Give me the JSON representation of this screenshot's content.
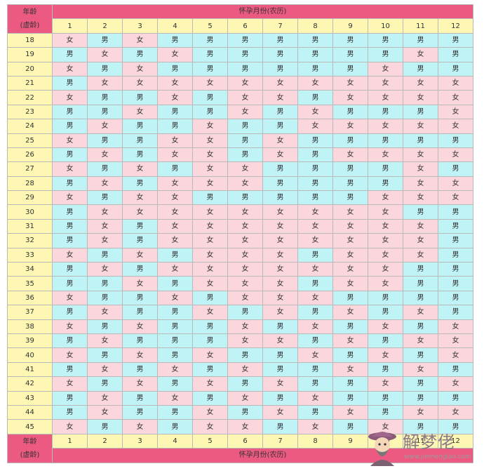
{
  "header": {
    "age_label_line1": "年龄",
    "age_label_line2": "(虚龄)",
    "title": "怀孕月份(农历)"
  },
  "months": [
    "1",
    "2",
    "3",
    "4",
    "5",
    "6",
    "7",
    "8",
    "9",
    "10",
    "11",
    "12"
  ],
  "rows": [
    {
      "age": "18",
      "values": [
        "女",
        "男",
        "女",
        "男",
        "男",
        "男",
        "男",
        "男",
        "男",
        "男",
        "男",
        "男"
      ]
    },
    {
      "age": "19",
      "values": [
        "男",
        "女",
        "男",
        "女",
        "男",
        "男",
        "男",
        "男",
        "男",
        "男",
        "女",
        "男"
      ]
    },
    {
      "age": "20",
      "values": [
        "女",
        "男",
        "女",
        "男",
        "男",
        "男",
        "男",
        "男",
        "男",
        "女",
        "男",
        "男"
      ]
    },
    {
      "age": "21",
      "values": [
        "男",
        "女",
        "女",
        "女",
        "女",
        "女",
        "女",
        "女",
        "女",
        "女",
        "女",
        "女"
      ]
    },
    {
      "age": "22",
      "values": [
        "女",
        "男",
        "男",
        "女",
        "男",
        "女",
        "女",
        "男",
        "女",
        "女",
        "女",
        "女"
      ]
    },
    {
      "age": "23",
      "values": [
        "男",
        "男",
        "女",
        "男",
        "男",
        "女",
        "男",
        "女",
        "男",
        "男",
        "男",
        "女"
      ]
    },
    {
      "age": "24",
      "values": [
        "男",
        "女",
        "男",
        "男",
        "女",
        "男",
        "男",
        "女",
        "女",
        "女",
        "女",
        "女"
      ]
    },
    {
      "age": "25",
      "values": [
        "女",
        "男",
        "男",
        "女",
        "女",
        "男",
        "女",
        "男",
        "男",
        "男",
        "男",
        "男"
      ]
    },
    {
      "age": "26",
      "values": [
        "男",
        "女",
        "男",
        "女",
        "女",
        "男",
        "女",
        "男",
        "女",
        "女",
        "女",
        "女"
      ]
    },
    {
      "age": "27",
      "values": [
        "女",
        "男",
        "女",
        "男",
        "女",
        "女",
        "男",
        "男",
        "男",
        "男",
        "女",
        "男"
      ]
    },
    {
      "age": "28",
      "values": [
        "男",
        "女",
        "男",
        "女",
        "女",
        "女",
        "男",
        "男",
        "男",
        "男",
        "女",
        "女"
      ]
    },
    {
      "age": "29",
      "values": [
        "女",
        "男",
        "女",
        "女",
        "男",
        "男",
        "男",
        "男",
        "男",
        "女",
        "女",
        "女"
      ]
    },
    {
      "age": "30",
      "values": [
        "男",
        "女",
        "女",
        "女",
        "女",
        "女",
        "女",
        "女",
        "女",
        "女",
        "男",
        "男"
      ]
    },
    {
      "age": "31",
      "values": [
        "男",
        "女",
        "男",
        "女",
        "女",
        "女",
        "女",
        "女",
        "女",
        "女",
        "女",
        "男"
      ]
    },
    {
      "age": "32",
      "values": [
        "男",
        "女",
        "男",
        "女",
        "女",
        "女",
        "女",
        "女",
        "女",
        "女",
        "女",
        "男"
      ]
    },
    {
      "age": "33",
      "values": [
        "女",
        "男",
        "女",
        "男",
        "女",
        "女",
        "女",
        "男",
        "女",
        "女",
        "女",
        "男"
      ]
    },
    {
      "age": "34",
      "values": [
        "男",
        "女",
        "男",
        "女",
        "女",
        "女",
        "女",
        "女",
        "女",
        "女",
        "男",
        "男"
      ]
    },
    {
      "age": "35",
      "values": [
        "男",
        "男",
        "女",
        "男",
        "女",
        "女",
        "女",
        "男",
        "女",
        "女",
        "男",
        "男"
      ]
    },
    {
      "age": "36",
      "values": [
        "女",
        "男",
        "男",
        "女",
        "男",
        "女",
        "女",
        "女",
        "男",
        "男",
        "男",
        "男"
      ]
    },
    {
      "age": "37",
      "values": [
        "男",
        "女",
        "男",
        "男",
        "女",
        "男",
        "女",
        "男",
        "女",
        "男",
        "女",
        "男"
      ]
    },
    {
      "age": "38",
      "values": [
        "女",
        "男",
        "女",
        "男",
        "男",
        "女",
        "男",
        "女",
        "男",
        "女",
        "男",
        "女"
      ]
    },
    {
      "age": "39",
      "values": [
        "男",
        "女",
        "男",
        "男",
        "男",
        "女",
        "女",
        "男",
        "女",
        "男",
        "女",
        "女"
      ]
    },
    {
      "age": "40",
      "values": [
        "女",
        "男",
        "女",
        "男",
        "女",
        "男",
        "男",
        "女",
        "男",
        "女",
        "男",
        "女"
      ]
    },
    {
      "age": "41",
      "values": [
        "男",
        "女",
        "男",
        "女",
        "男",
        "女",
        "男",
        "男",
        "女",
        "男",
        "女",
        "男"
      ]
    },
    {
      "age": "42",
      "values": [
        "女",
        "男",
        "女",
        "男",
        "女",
        "男",
        "女",
        "男",
        "男",
        "女",
        "男",
        "女"
      ]
    },
    {
      "age": "43",
      "values": [
        "男",
        "女",
        "男",
        "女",
        "男",
        "女",
        "男",
        "女",
        "男",
        "男",
        "男",
        "男"
      ]
    },
    {
      "age": "44",
      "values": [
        "男",
        "女",
        "男",
        "男",
        "女",
        "男",
        "女",
        "男",
        "女",
        "男",
        "女",
        "女"
      ]
    },
    {
      "age": "45",
      "values": [
        "女",
        "男",
        "女",
        "男",
        "女",
        "女",
        "男",
        "女",
        "男",
        "女",
        "男",
        "男"
      ]
    }
  ],
  "watermark": {
    "text": "解梦佬",
    "url": "www.jiemenglao.com"
  },
  "colors": {
    "header_pink": "#ec5a82",
    "label_yellow": "#fdf7b3",
    "boy_cyan": "#bff3f6",
    "girl_pink": "#fbd6dc"
  }
}
